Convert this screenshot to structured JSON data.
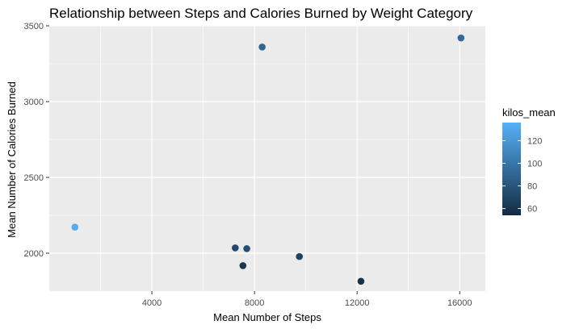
{
  "chart_data": {
    "type": "scatter",
    "title": "Relationship between Steps and Calories Burned by Weight Category",
    "xlabel": "Mean Number of Steps",
    "ylabel": "Mean Number of Calories Burned",
    "xlim": [
      0,
      17000
    ],
    "ylim": [
      1750,
      3500
    ],
    "x_ticks": [
      4000,
      8000,
      12000,
      16000
    ],
    "x_tick_labels": [
      "4000",
      "8000",
      "12000",
      "16000"
    ],
    "y_ticks": [
      2000,
      2500,
      3000,
      3500
    ],
    "y_tick_labels": [
      "2000",
      "2500",
      "3000",
      "3500"
    ],
    "grid": true,
    "points": [
      {
        "x": 1000,
        "y": 2172,
        "kilos_mean": 133
      },
      {
        "x": 7250,
        "y": 2035,
        "kilos_mean": 72
      },
      {
        "x": 7700,
        "y": 2030,
        "kilos_mean": 75
      },
      {
        "x": 7550,
        "y": 1918,
        "kilos_mean": 62
      },
      {
        "x": 8300,
        "y": 3360,
        "kilos_mean": 90
      },
      {
        "x": 9750,
        "y": 1978,
        "kilos_mean": 68
      },
      {
        "x": 12150,
        "y": 1815,
        "kilos_mean": 58
      },
      {
        "x": 16050,
        "y": 3420,
        "kilos_mean": 92
      }
    ],
    "legend": {
      "title": "kilos_mean",
      "placement": "right",
      "range": [
        54,
        136
      ],
      "ticks": [
        60,
        80,
        100,
        120
      ],
      "tick_labels": [
        "60",
        "80",
        "100",
        "120"
      ],
      "color_low": "#132B43",
      "color_high": "#56B1F7"
    },
    "panel_background": "#EBEBEB",
    "grid_color": "#FFFFFF"
  }
}
